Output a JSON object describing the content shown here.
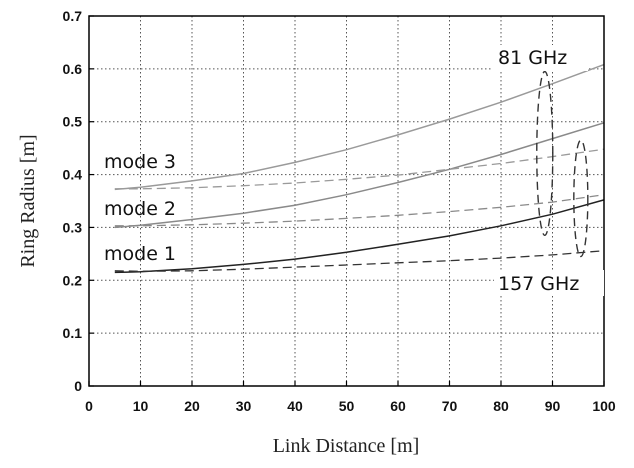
{
  "chart_data": {
    "type": "line",
    "title": "",
    "xlabel": "Link Distance [m]",
    "ylabel": "Ring Radius [m]",
    "xlim": [
      0,
      100
    ],
    "ylim": [
      0,
      0.7
    ],
    "xticks": [
      "0",
      "10",
      "20",
      "30",
      "40",
      "50",
      "60",
      "70",
      "80",
      "90",
      "100"
    ],
    "yticks": [
      "0",
      "0.1",
      "0.2",
      "0.3",
      "0.4",
      "0.5",
      "0.6",
      "0.7"
    ],
    "grid": true,
    "x": [
      5,
      10,
      20,
      30,
      40,
      50,
      60,
      70,
      80,
      90,
      100
    ],
    "series": [
      {
        "group": "81 GHz",
        "mode": "mode 1",
        "style": "solid",
        "color": "#222222",
        "values": [
          0.215,
          0.216,
          0.222,
          0.23,
          0.24,
          0.253,
          0.268,
          0.284,
          0.303,
          0.325,
          0.352
        ]
      },
      {
        "group": "81 GHz",
        "mode": "mode 2",
        "style": "solid",
        "color": "#8a8a8a",
        "values": [
          0.3,
          0.304,
          0.315,
          0.327,
          0.342,
          0.362,
          0.385,
          0.41,
          0.438,
          0.468,
          0.498
        ]
      },
      {
        "group": "81 GHz",
        "mode": "mode 3",
        "style": "solid",
        "color": "#9a9a9a",
        "values": [
          0.372,
          0.376,
          0.388,
          0.402,
          0.423,
          0.447,
          0.475,
          0.505,
          0.537,
          0.572,
          0.608
        ]
      },
      {
        "group": "157 GHz",
        "mode": "mode 1",
        "style": "dashed",
        "color": "#333333",
        "values": [
          0.218,
          0.217,
          0.218,
          0.221,
          0.225,
          0.229,
          0.233,
          0.237,
          0.242,
          0.248,
          0.256
        ]
      },
      {
        "group": "157 GHz",
        "mode": "mode 2",
        "style": "dashed",
        "color": "#8a8a8a",
        "values": [
          0.303,
          0.303,
          0.305,
          0.308,
          0.312,
          0.317,
          0.323,
          0.33,
          0.338,
          0.348,
          0.362
        ]
      },
      {
        "group": "157 GHz",
        "mode": "mode 3",
        "style": "dashed",
        "color": "#9a9a9a",
        "values": [
          0.373,
          0.373,
          0.375,
          0.379,
          0.384,
          0.391,
          0.399,
          0.41,
          0.421,
          0.434,
          0.448
        ]
      }
    ],
    "annotations": {
      "mode3": "mode 3",
      "mode2": "mode 2",
      "mode1": "mode 1",
      "ghz81": "81 GHz",
      "ghz157": "157 GHz"
    }
  }
}
